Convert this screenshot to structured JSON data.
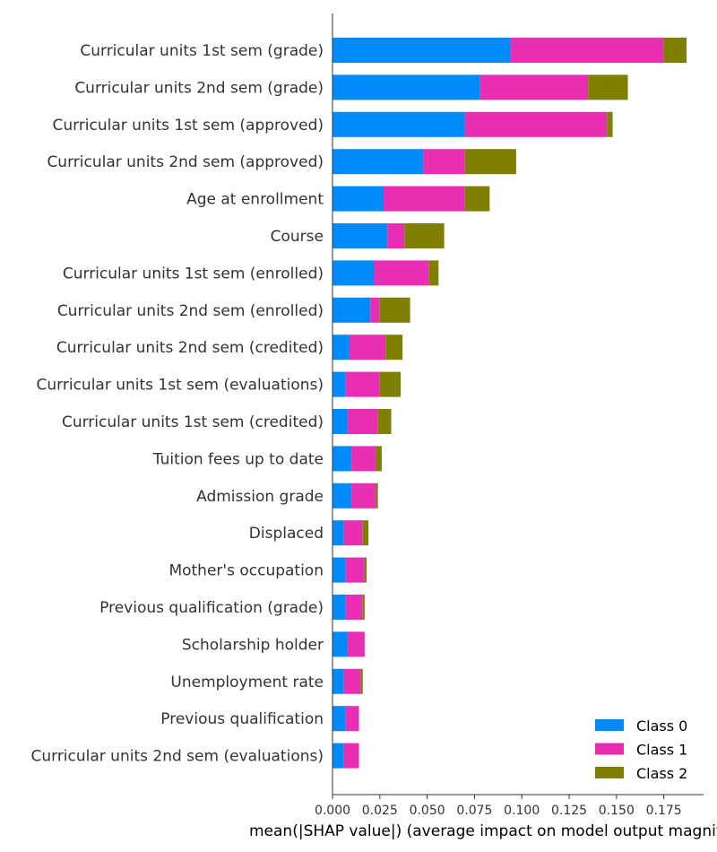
{
  "chart_data": {
    "type": "bar",
    "orientation": "horizontal",
    "stacked": true,
    "xlabel": "mean(|SHAP value|) (average impact on model output magnitude)",
    "ylabel": "",
    "title": "",
    "xlim": [
      0,
      0.196
    ],
    "xticks": [
      "0.000",
      "0.025",
      "0.050",
      "0.075",
      "0.100",
      "0.125",
      "0.150",
      "0.175"
    ],
    "legend_position": "bottom-right",
    "grid": false,
    "categories": [
      "Curricular units 1st sem (grade)",
      "Curricular units 2nd sem (grade)",
      "Curricular units 1st sem (approved)",
      "Curricular units 2nd sem (approved)",
      "Age at enrollment",
      "Course",
      "Curricular units 1st sem (enrolled)",
      "Curricular units 2nd sem (enrolled)",
      "Curricular units 2nd sem (credited)",
      "Curricular units 1st sem (evaluations)",
      "Curricular units 1st sem (credited)",
      "Tuition fees up to date",
      "Admission grade",
      "Displaced",
      "Mother's occupation",
      "Previous qualification (grade)",
      "Scholarship holder",
      "Unemployment rate",
      "Previous qualification",
      "Curricular units 2nd sem (evaluations)"
    ],
    "series": [
      {
        "name": "Class 0",
        "color": "#008bfb",
        "values": [
          0.094,
          0.078,
          0.07,
          0.048,
          0.027,
          0.029,
          0.022,
          0.02,
          0.009,
          0.007,
          0.008,
          0.01,
          0.01,
          0.006,
          0.007,
          0.007,
          0.008,
          0.006,
          0.007,
          0.006
        ]
      },
      {
        "name": "Class 1",
        "color": "#e82fb4",
        "values": [
          0.081,
          0.057,
          0.075,
          0.022,
          0.043,
          0.009,
          0.029,
          0.005,
          0.019,
          0.018,
          0.016,
          0.013,
          0.013,
          0.01,
          0.01,
          0.009,
          0.009,
          0.009,
          0.007,
          0.008
        ]
      },
      {
        "name": "Class 2",
        "color": "#808000",
        "values": [
          0.012,
          0.021,
          0.003,
          0.027,
          0.013,
          0.021,
          0.005,
          0.016,
          0.009,
          0.011,
          0.007,
          0.003,
          0.001,
          0.003,
          0.001,
          0.001,
          0.0,
          0.001,
          0.0,
          0.0
        ]
      }
    ]
  }
}
